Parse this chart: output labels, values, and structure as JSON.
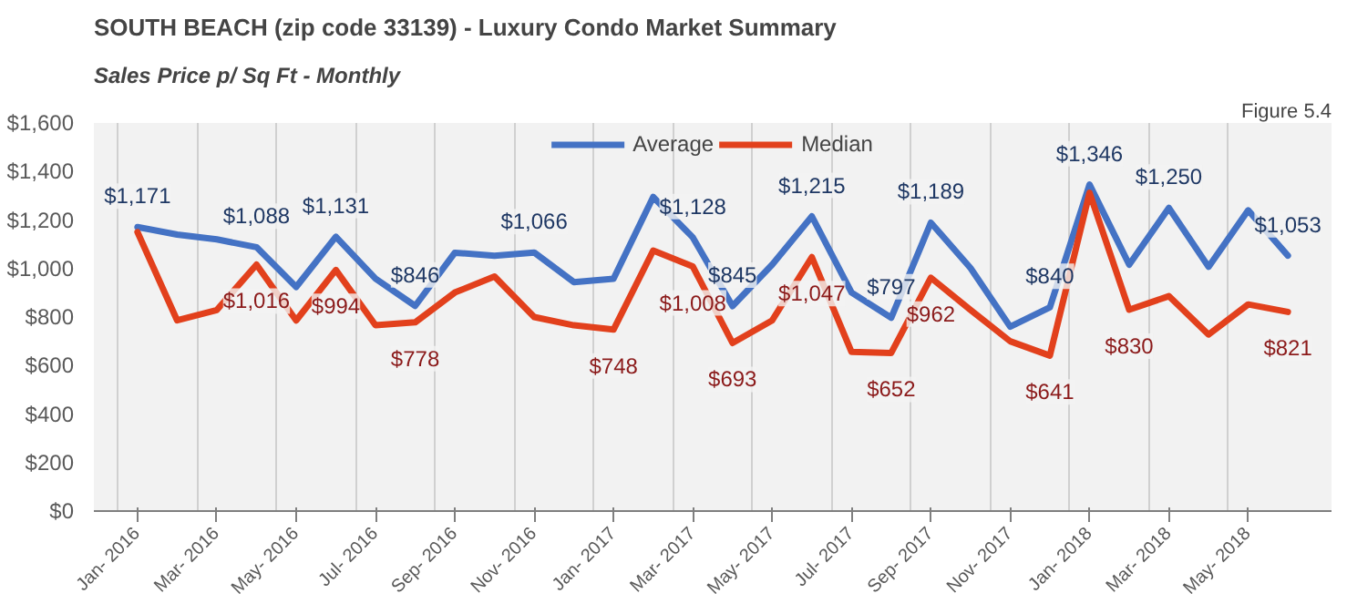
{
  "chart_data": {
    "type": "line",
    "title": "SOUTH BEACH (zip code 33139) - Luxury Condo Market Summary",
    "subtitle": "Sales Price  p/ Sq Ft - Monthly",
    "annotations": [
      "Figure 5.4"
    ],
    "categories": [
      "Jan- 2016",
      null,
      "Mar- 2016",
      null,
      "May- 2016",
      null,
      "Jul- 2016",
      null,
      "Sep- 2016",
      null,
      "Nov- 2016",
      null,
      "Jan- 2017",
      null,
      "Mar- 2017",
      null,
      "May- 2017",
      null,
      "Jul- 2017",
      null,
      "Sep- 2017",
      null,
      "Nov- 2017",
      null,
      "Jan- 2018",
      null,
      "Mar- 2018",
      null,
      "May- 2018",
      null
    ],
    "series": [
      {
        "name": "Average",
        "color": "#4472c4",
        "values": [
          1171,
          1140,
          1120,
          1088,
          924,
          1131,
          958,
          846,
          1065,
          1053,
          1066,
          944,
          958,
          1295,
          1128,
          845,
          1016,
          1215,
          901,
          797,
          1189,
          1002,
          760,
          840,
          1346,
          1016,
          1250,
          1007,
          1240,
          1053
        ],
        "value_labels": [
          "$1,171",
          null,
          null,
          "$1,088",
          null,
          "$1,131",
          null,
          "$846",
          null,
          null,
          "$1,066",
          null,
          null,
          null,
          "$1,128",
          "$845",
          null,
          "$1,215",
          null,
          "$797",
          "$1,189",
          null,
          null,
          "$840",
          "$1,346",
          null,
          "$1,250",
          null,
          null,
          "$1,053"
        ]
      },
      {
        "name": "Median",
        "color": "#e2401c",
        "values": [
          1150,
          786,
          829,
          1016,
          786,
          994,
          766,
          778,
          901,
          967,
          800,
          766,
          748,
          1074,
          1008,
          693,
          786,
          1047,
          656,
          652,
          962,
          829,
          700,
          641,
          1312,
          830,
          886,
          728,
          852,
          821
        ],
        "value_labels": [
          null,
          null,
          null,
          "$1,016",
          null,
          "$994",
          null,
          "$778",
          null,
          null,
          null,
          null,
          "$748",
          null,
          "$1,008",
          "$693",
          null,
          "$1,047",
          null,
          "$652",
          "$962",
          null,
          null,
          "$641",
          null,
          "$830",
          null,
          null,
          null,
          "$821"
        ]
      }
    ],
    "ylim": [
      0,
      1600
    ],
    "yticks": [
      {
        "value": 0,
        "label": "$0"
      },
      {
        "value": 200,
        "label": "$200"
      },
      {
        "value": 400,
        "label": "$400"
      },
      {
        "value": 600,
        "label": "$600"
      },
      {
        "value": 800,
        "label": "$800"
      },
      {
        "value": 1000,
        "label": "$1,000"
      },
      {
        "value": 1200,
        "label": "$1,200"
      },
      {
        "value": 1400,
        "label": "$1,400"
      },
      {
        "value": 1600,
        "label": "$1,600"
      }
    ],
    "grid": "x",
    "legend": "top",
    "marker": "none",
    "line_style": "solid"
  }
}
